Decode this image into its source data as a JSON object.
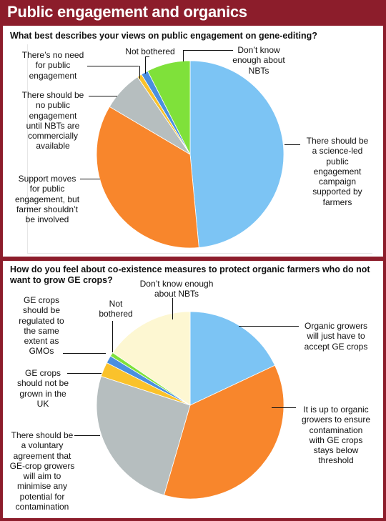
{
  "title": "Public engagement and organics",
  "colors": {
    "frame": "#8c1d2b",
    "blue": "#7cc4f4",
    "orange": "#f8862c",
    "grey": "#b6bebf",
    "yellow": "#fac22b",
    "green": "#7fe13a",
    "mid_blue": "#4a8fe0",
    "cream": "#fdf7d2"
  },
  "chart_data": [
    {
      "type": "pie",
      "title": "What best describes your views on public engagement on gene-editing?",
      "slices": [
        {
          "label": "There should be a science-led public engagement campaign supported by farmers",
          "value": 48.5,
          "color": "#7cc4f4"
        },
        {
          "label": "Support moves for public engagement, but farmer shouldn’t be involved",
          "value": 35.0,
          "color": "#f8862c"
        },
        {
          "label": "There should be no public engagement until NBTs are commercially available",
          "value": 7.0,
          "color": "#b6bebf"
        },
        {
          "label": "There’s no need for public engagement",
          "value": 0.8,
          "color": "#fac22b"
        },
        {
          "label": "Not bothered",
          "value": 1.2,
          "color": "#4a8fe0"
        },
        {
          "label": "Don’t know enough about NBTs",
          "value": 7.5,
          "color": "#7fe13a"
        }
      ]
    },
    {
      "type": "pie",
      "title": "How do you feel about co-existence measures to protect organic farmers who do not want to grow GE crops?",
      "slices": [
        {
          "label": "Organic growers will just have to accept GE crops",
          "value": 18.0,
          "color": "#7cc4f4"
        },
        {
          "label": "It is up to organic growers to ensure contamination with GE crops stays below threshold",
          "value": 36.5,
          "color": "#f8862c"
        },
        {
          "label": "There should be a voluntary agreement that GE-crop growers will aim to minimise any potential for contamination",
          "value": 25.5,
          "color": "#b6bebf"
        },
        {
          "label": "GE crops should not be grown in the UK",
          "value": 2.5,
          "color": "#fac22b"
        },
        {
          "label": "GE crops should be regulated to the same extent as GMOs",
          "value": 1.3,
          "color": "#4a8fe0"
        },
        {
          "label": "Not bothered",
          "value": 0.7,
          "color": "#7fe13a"
        },
        {
          "label": "Don’t know enough about NBTs",
          "value": 15.5,
          "color": "#fdf7d2"
        }
      ]
    }
  ],
  "labels1": {
    "s0": "There should be\na science-led\npublic\nengagement\ncampaign\nsupported by\nfarmers",
    "s1": "Support moves\nfor public\nengagement, but\nfarmer shouldn’t\nbe involved",
    "s2": "There should be\nno public\nengagement\nuntil NBTs are\ncommercially\navailable",
    "s3": "There’s no need\nfor public\nengagement",
    "s4": "Not bothered",
    "s5": "Don’t know\nenough about\nNBTs"
  },
  "labels2": {
    "s0": "Organic growers\nwill just have to\naccept GE crops",
    "s1": "It is up to organic\ngrowers to ensure\ncontamination\nwith GE crops\nstays below\nthreshold",
    "s2": "There should be\na voluntary\nagreement that\nGE-crop growers\nwill aim to\nminimise any\npotential for\ncontamination",
    "s3": "GE crops\nshould not be\ngrown in the\nUK",
    "s4": "GE crops\nshould be\nregulated to\nthe same\nextent as\nGMOs",
    "s5": "Not\nbothered",
    "s6": "Don’t know enough\nabout NBTs"
  }
}
